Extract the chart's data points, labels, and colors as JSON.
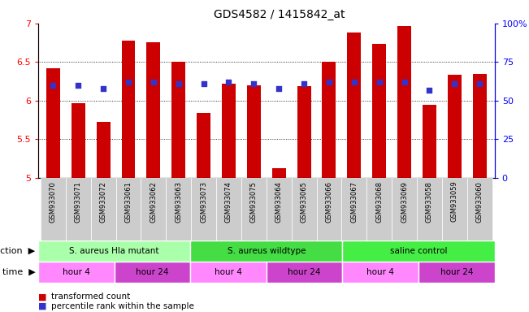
{
  "title": "GDS4582 / 1415842_at",
  "samples": [
    "GSM933070",
    "GSM933071",
    "GSM933072",
    "GSM933061",
    "GSM933062",
    "GSM933063",
    "GSM933073",
    "GSM933074",
    "GSM933075",
    "GSM933064",
    "GSM933065",
    "GSM933066",
    "GSM933067",
    "GSM933068",
    "GSM933069",
    "GSM933058",
    "GSM933059",
    "GSM933060"
  ],
  "transformed_count": [
    6.42,
    5.97,
    5.72,
    6.78,
    6.76,
    6.5,
    5.84,
    6.22,
    6.2,
    5.12,
    6.19,
    6.5,
    6.88,
    6.73,
    6.97,
    5.95,
    6.34,
    6.35
  ],
  "percentile_rank": [
    60,
    60,
    58,
    62,
    62,
    61,
    61,
    62,
    61,
    58,
    61,
    62,
    62,
    62,
    62,
    57,
    61,
    61
  ],
  "bar_color": "#cc0000",
  "dot_color": "#3333cc",
  "ylim": [
    5.0,
    7.0
  ],
  "yticks": [
    5.0,
    5.5,
    6.0,
    6.5,
    7.0
  ],
  "ytick_labels": [
    "5",
    "5.5",
    "6",
    "6.5",
    "7"
  ],
  "y2lim": [
    0,
    100
  ],
  "y2ticks": [
    0,
    25,
    50,
    75,
    100
  ],
  "y2tick_labels": [
    "0",
    "25",
    "50",
    "75",
    "100%"
  ],
  "hlines": [
    5.5,
    6.0,
    6.5
  ],
  "infection_groups": [
    {
      "label": "S. aureus Hla mutant",
      "start": 0,
      "end": 6,
      "color": "#aaffaa"
    },
    {
      "label": "S. aureus wildtype",
      "start": 6,
      "end": 12,
      "color": "#44dd44"
    },
    {
      "label": "saline control",
      "start": 12,
      "end": 18,
      "color": "#44ee44"
    }
  ],
  "time_groups": [
    {
      "label": "hour 4",
      "start": 0,
      "end": 3,
      "color": "#ff88ff"
    },
    {
      "label": "hour 24",
      "start": 3,
      "end": 6,
      "color": "#cc44cc"
    },
    {
      "label": "hour 4",
      "start": 6,
      "end": 9,
      "color": "#ff88ff"
    },
    {
      "label": "hour 24",
      "start": 9,
      "end": 12,
      "color": "#cc44cc"
    },
    {
      "label": "hour 4",
      "start": 12,
      "end": 15,
      "color": "#ff88ff"
    },
    {
      "label": "hour 24",
      "start": 15,
      "end": 18,
      "color": "#cc44cc"
    }
  ],
  "infection_label": "infection",
  "time_label": "time",
  "legend_bar_label": "transformed count",
  "legend_dot_label": "percentile rank within the sample",
  "bar_width": 0.55,
  "n": 18,
  "plot_bg": "#ffffff",
  "xtick_bg": "#cccccc",
  "fig_bg": "#ffffff"
}
